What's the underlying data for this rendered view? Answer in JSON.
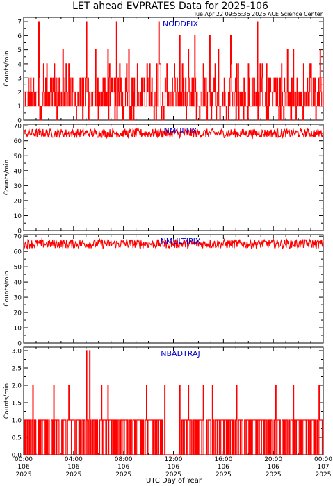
{
  "header": {
    "title": "LET ahead EVPRATES Data for 2025-106",
    "timestamp": "Tue Apr 22 09:55:36 2025 ACE Science Center"
  },
  "colors": {
    "series": "#ff0000",
    "panel_label": "#0000cc",
    "axes": "#000000"
  },
  "chart_data": [
    {
      "type": "line",
      "panel_label": "NODDFIX",
      "ylabel": "Counts/min",
      "ylim": [
        0,
        7.3
      ],
      "yticks": [
        0,
        1,
        2,
        3,
        4,
        5,
        6,
        7
      ],
      "base_levels": [
        1,
        3
      ],
      "spikes": [
        {
          "t": 0.13,
          "v": 5
        },
        {
          "t": 0.24,
          "v": 5
        },
        {
          "t": 0.28,
          "v": 5
        },
        {
          "t": 0.35,
          "v": 5
        },
        {
          "t": 0.55,
          "v": 5
        },
        {
          "t": 0.65,
          "v": 5
        },
        {
          "t": 0.88,
          "v": 5
        },
        {
          "t": 0.9,
          "v": 5
        },
        {
          "t": 0.99,
          "v": 5
        },
        {
          "t": 0.15,
          "v": 4
        },
        {
          "t": 0.42,
          "v": 4
        },
        {
          "t": 0.6,
          "v": 4
        },
        {
          "t": 0.75,
          "v": 4
        },
        {
          "t": 0.81,
          "v": 4
        },
        {
          "t": 0.86,
          "v": 4
        },
        {
          "t": 0.52,
          "v": 6
        },
        {
          "t": 0.57,
          "v": 6
        },
        {
          "t": 0.62,
          "v": 6
        },
        {
          "t": 0.69,
          "v": 6
        },
        {
          "t": 0.05,
          "v": 7
        },
        {
          "t": 0.21,
          "v": 7
        },
        {
          "t": 0.31,
          "v": 7
        },
        {
          "t": 0.45,
          "v": 7
        },
        {
          "t": 0.78,
          "v": 7
        }
      ]
    },
    {
      "type": "line",
      "panel_label": "NMULTIX",
      "ylabel": "Counts/min",
      "ylim": [
        0,
        71
      ],
      "yticks": [
        0,
        10,
        20,
        30,
        40,
        50,
        60,
        70
      ],
      "base_levels": [
        62,
        68
      ]
    },
    {
      "type": "line",
      "panel_label": "NMULTIPIX",
      "ylabel": "Counts/min",
      "ylim": [
        0,
        71
      ],
      "yticks": [
        0,
        10,
        20,
        30,
        40,
        50,
        60,
        70
      ],
      "base_levels": [
        62,
        68
      ]
    },
    {
      "type": "line",
      "panel_label": "NBADTRAJ",
      "ylabel": "Counts/min",
      "ylim": [
        0,
        3.1
      ],
      "yticks": [
        0.0,
        0.5,
        1.0,
        1.5,
        2.0,
        2.5,
        3.0
      ],
      "ytick_labels": [
        "0.0",
        "0.5",
        "1.0",
        "1.5",
        "2.0",
        "2.5",
        "3.0"
      ],
      "base_levels": [
        0,
        1
      ],
      "spikes": [
        {
          "t": 0.03,
          "v": 2
        },
        {
          "t": 0.1,
          "v": 2
        },
        {
          "t": 0.15,
          "v": 2
        },
        {
          "t": 0.21,
          "v": 3
        },
        {
          "t": 0.22,
          "v": 3
        },
        {
          "t": 0.26,
          "v": 2
        },
        {
          "t": 0.28,
          "v": 2
        },
        {
          "t": 0.41,
          "v": 2
        },
        {
          "t": 0.47,
          "v": 2
        },
        {
          "t": 0.52,
          "v": 2
        },
        {
          "t": 0.55,
          "v": 2
        },
        {
          "t": 0.6,
          "v": 2
        },
        {
          "t": 0.63,
          "v": 2
        },
        {
          "t": 0.71,
          "v": 2
        },
        {
          "t": 0.84,
          "v": 2
        },
        {
          "t": 0.9,
          "v": 2
        },
        {
          "t": 0.985,
          "v": 2
        }
      ]
    }
  ],
  "x_axis": {
    "title": "UTC Day of Year",
    "range_hours": [
      0,
      24
    ],
    "ticks": [
      {
        "hour": 0,
        "time": "00:00",
        "doy": "106",
        "year": "2025"
      },
      {
        "hour": 4,
        "time": "04:00",
        "doy": "106",
        "year": "2025"
      },
      {
        "hour": 8,
        "time": "08:00",
        "doy": "106",
        "year": "2025"
      },
      {
        "hour": 12,
        "time": "12:00",
        "doy": "106",
        "year": "2025"
      },
      {
        "hour": 16,
        "time": "16:00",
        "doy": "106",
        "year": "2025"
      },
      {
        "hour": 20,
        "time": "20:00",
        "doy": "106",
        "year": "2025"
      },
      {
        "hour": 24,
        "time": "00:00",
        "doy": "107",
        "year": "2025"
      }
    ]
  }
}
